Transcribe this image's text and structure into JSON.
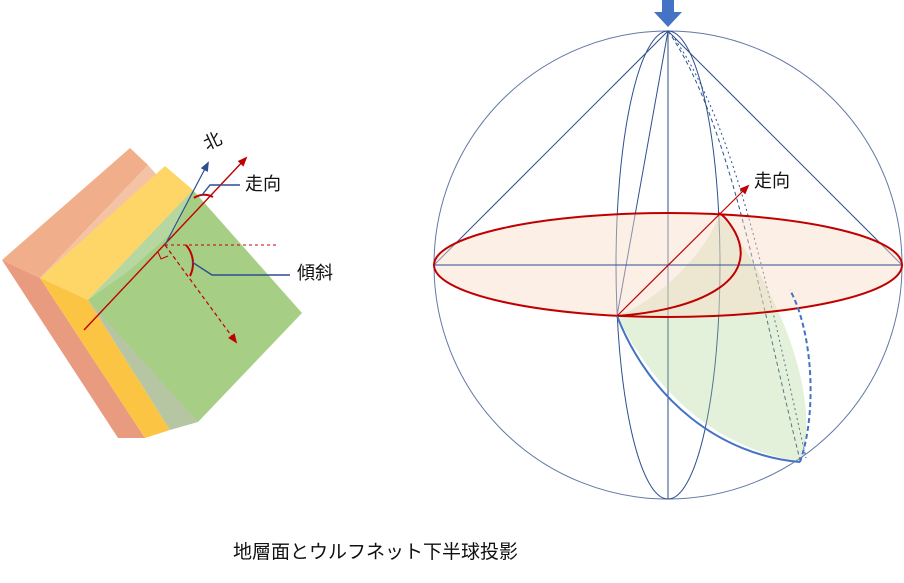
{
  "block_diagram": {
    "north_label": "北",
    "strike_label": "走向",
    "dip_label": "傾斜"
  },
  "wulff_net": {
    "strike_label": "走向"
  },
  "caption": "地層面とウルフネット下半球投影",
  "colors": {
    "layer_top": "#efad86",
    "layer_mid": "#fdd667",
    "layer_green": "#a6cf85",
    "red_line": "#c00000",
    "blue_line": "#2e4f8e",
    "arrow_blue": "#4472c4"
  }
}
